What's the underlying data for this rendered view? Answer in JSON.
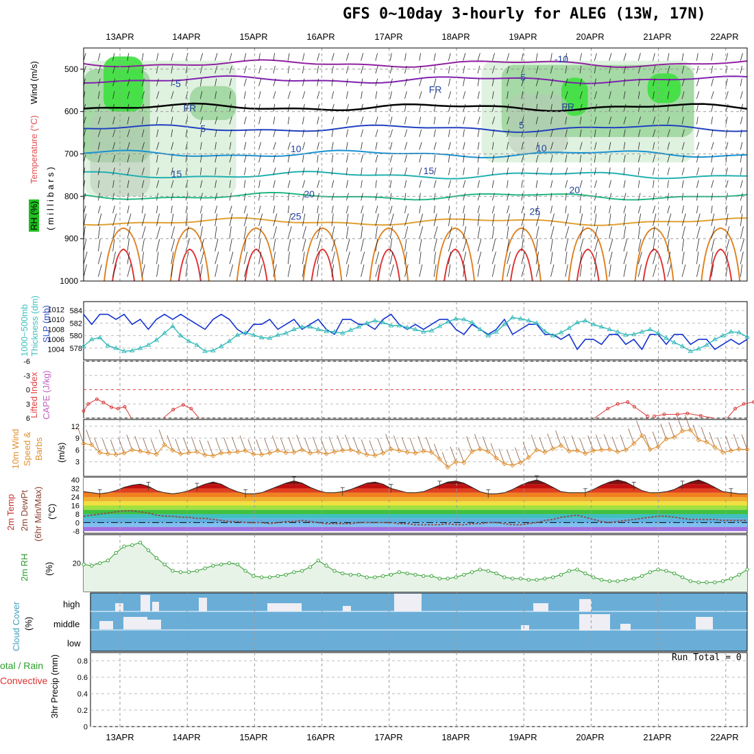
{
  "title": "GFS 0~10day 3-hourly for ALEG (13W, 17N)",
  "dates": [
    "13APR",
    "14APR",
    "15APR",
    "16APR",
    "17APR",
    "18APR",
    "19APR",
    "20APR",
    "21APR",
    "22APR"
  ],
  "labels": {
    "rh": "RH (%)",
    "temperature": "Temperature (°C)",
    "wind": "Wind (m/s)",
    "pressure_axis": "( m i l l i b a r s )",
    "thickness": "1000~500mb Thickness (dm)",
    "slp": "SLP (mb)",
    "lifted_index": "Lifted Index",
    "cape": "CAPE (J/kg)",
    "wind10": "10m Wind Speed & Barbs",
    "ms": "(m/s)",
    "temp2m": "2m Temp",
    "dewpt2m": "2m DewPt",
    "minmax": "(6hr Min/Max)",
    "celsius": "(°C)",
    "rh2m": "2m RH",
    "percent": "(%)",
    "cloud": "Cloud Cover",
    "cloud_pct": "(%)",
    "cloud_high": "high",
    "cloud_middle": "middle",
    "cloud_low": "low",
    "precip_total": "otal / Rain",
    "precip_conv": "Convective",
    "precip_axis": "3hr Precip (mm)",
    "run_total": "Run Total = 0"
  },
  "colors": {
    "rh": "#1fbf1f",
    "temperature": "#e05050",
    "wind": "#000000",
    "thickness": "#40c0c0",
    "slp": "#3050d0",
    "lifted": "#e04040",
    "cape": "#c060c0",
    "wind10_label": "#e09030",
    "rh2m": "#2a9a2a",
    "cloud": "#40a0c0",
    "precip_total": "#2aa02a",
    "precip_conv": "#e03030"
  },
  "chart_data": [
    {
      "type": "line",
      "panel": "upper-air",
      "y_ticks": [
        500,
        600,
        700,
        800,
        900,
        1000
      ],
      "ylim": [
        1000,
        450
      ],
      "isotherms": [
        {
          "name": "-10",
          "color": "#9020a0",
          "base": 487
        },
        {
          "name": "-5",
          "color": "#8020b0",
          "base": 525
        },
        {
          "name": "FR",
          "color": "#000000",
          "base": 590
        },
        {
          "name": "5",
          "color": "#2040c0",
          "base": 640
        },
        {
          "name": "10",
          "color": "#1890d0",
          "base": 700
        },
        {
          "name": "15",
          "color": "#20b0b0",
          "base": 750
        },
        {
          "name": "20",
          "color": "#20b880",
          "base": 800
        },
        {
          "name": "25",
          "color": "#e0a030",
          "base": 860
        }
      ],
      "isotherm_labels": [
        {
          "text": "-10",
          "x": 7.2,
          "p": 484
        },
        {
          "text": "-5",
          "x": 6.6,
          "p": 527
        },
        {
          "text": "-5",
          "x": 1.4,
          "p": 542
        },
        {
          "text": "FR",
          "x": 1.6,
          "p": 600
        },
        {
          "text": "FR",
          "x": 5.3,
          "p": 556
        },
        {
          "text": "FR",
          "x": 7.3,
          "p": 596
        },
        {
          "text": "5",
          "x": 1.8,
          "p": 648
        },
        {
          "text": "5",
          "x": 6.6,
          "p": 640
        },
        {
          "text": "10",
          "x": 3.2,
          "p": 696
        },
        {
          "text": "10",
          "x": 6.9,
          "p": 694
        },
        {
          "text": "15",
          "x": 1.4,
          "p": 755
        },
        {
          "text": "15",
          "x": 5.2,
          "p": 748
        },
        {
          "text": "20",
          "x": 3.4,
          "p": 803
        },
        {
          "text": "20",
          "x": 7.4,
          "p": 793
        },
        {
          "text": "25",
          "x": 3.2,
          "p": 855
        },
        {
          "text": "25",
          "x": 6.8,
          "p": 844
        }
      ],
      "rh_moist_zones": [
        {
          "x0": 0.0,
          "x1": 2.3,
          "p0": 480,
          "p1": 800,
          "level": 1
        },
        {
          "x0": 0.0,
          "x1": 1.0,
          "p0": 500,
          "p1": 720,
          "level": 2
        },
        {
          "x0": 0.3,
          "x1": 0.9,
          "p0": 470,
          "p1": 600,
          "level": 3
        },
        {
          "x0": 1.6,
          "x1": 2.3,
          "p0": 540,
          "p1": 620,
          "level": 2
        },
        {
          "x0": 6.0,
          "x1": 9.2,
          "p0": 480,
          "p1": 720,
          "level": 1
        },
        {
          "x0": 6.3,
          "x1": 9.2,
          "p0": 490,
          "p1": 660,
          "level": 2
        },
        {
          "x0": 7.2,
          "x1": 7.6,
          "p0": 520,
          "p1": 610,
          "level": 3
        },
        {
          "x0": 8.5,
          "x1": 9.0,
          "p0": 510,
          "p1": 580,
          "level": 3
        }
      ]
    },
    {
      "type": "line",
      "panel": "thickness-slp",
      "left_ticks": [
        584,
        582,
        580,
        578
      ],
      "right_ticks": [
        1012,
        1010,
        1008,
        1006,
        1004
      ],
      "series": [
        {
          "name": "SLP (mb)",
          "color": "#1030d0",
          "values": [
            1011,
            1009,
            1011,
            1011,
            1010,
            1011,
            1009,
            1010,
            1008,
            1010,
            1011,
            1010,
            1011,
            1010,
            1009,
            1008,
            1010,
            1011,
            1010,
            1008,
            1007,
            1009,
            1009,
            1010,
            1008,
            1009,
            1010,
            1008,
            1009,
            1010,
            1008,
            1007,
            1010,
            1010,
            1009,
            1009,
            1008,
            1010,
            1011,
            1009,
            1008,
            1009,
            1008,
            1009,
            1010,
            1010,
            1008,
            1007,
            1009,
            1008,
            1007,
            1008,
            1010,
            1007,
            1008,
            1009,
            1009,
            1007,
            1007,
            1006,
            1007,
            1004,
            1006,
            1006,
            1005,
            1007,
            1007,
            1005,
            1006,
            1004,
            1007,
            1007,
            1005,
            1007,
            1007,
            1005,
            1006,
            1006,
            1004,
            1005,
            1006,
            1005,
            1006
          ]
        },
        {
          "name": "1000~500mb Thickness (dm)",
          "color": "#30b8b8",
          "values": [
            578.3,
            579.4,
            579.7,
            578.4,
            578.0,
            577.5,
            577.6,
            578.0,
            578.5,
            579.3,
            580.4,
            581.5,
            580.0,
            579.1,
            578.5,
            577.5,
            577.6,
            578.3,
            579.1,
            580.1,
            580.5,
            580.1,
            579.7,
            579.6,
            580.1,
            580.4,
            581.0,
            581.4,
            581.4,
            581.0,
            580.7,
            580.6,
            580.4,
            580.9,
            581.4,
            582.0,
            582.4,
            582.1,
            581.6,
            581.6,
            581.3,
            581.0,
            580.6,
            580.8,
            581.5,
            582.2,
            582.7,
            582.6,
            582.1,
            581.0,
            580.0,
            580.6,
            581.8,
            582.9,
            582.7,
            582.4,
            582.0,
            580.7,
            580.0,
            580.5,
            581.2,
            582.1,
            582.4,
            581.8,
            581.4,
            581.0,
            580.6,
            580.1,
            580.2,
            580.6,
            581.0,
            580.4,
            579.6,
            578.9,
            578.3,
            577.5,
            577.9,
            578.5,
            579.4,
            580.0,
            580.6,
            580.5,
            579.8
          ]
        }
      ]
    },
    {
      "type": "line",
      "panel": "lifted-cape",
      "y_ticks": [
        -6,
        -3,
        0,
        3,
        6
      ],
      "series": [
        {
          "name": "Lifted Index",
          "color": "#d83838",
          "segments": [
            {
              "x": [
                0.0,
                0.07,
                0.2,
                0.3,
                0.42,
                0.52,
                0.62,
                0.72
              ],
              "values": [
                4.5,
                3.0,
                2.0,
                2.7,
                3.7,
                4.0,
                3.6,
                6.5
              ]
            },
            {
              "x": [
                1.2,
                1.35,
                1.5,
                1.62,
                1.74
              ],
              "values": [
                6.5,
                4.2,
                3.2,
                4.0,
                6.0
              ]
            },
            {
              "x": [
                7.7,
                7.9,
                8.05,
                8.2,
                8.3,
                8.5
              ],
              "values": [
                6.0,
                4.0,
                3.0,
                2.6,
                3.6,
                5.6
              ]
            },
            {
              "x": [
                8.6,
                8.75,
                8.95,
                9.1,
                9.3,
                9.5
              ],
              "values": [
                5.6,
                5.2,
                5.2,
                5.0,
                5.5,
                6.0
              ]
            },
            {
              "x": [
                9.7,
                9.82,
                9.95,
                10.1,
                10.25,
                10.4,
                10.55,
                10.65,
                10.75
              ],
              "values": [
                6.0,
                4.0,
                3.0,
                2.6,
                2.2,
                3.4,
                4.8,
                5.2,
                6.0
              ]
            }
          ]
        }
      ]
    },
    {
      "type": "line",
      "panel": "wind10",
      "y_ticks": [
        3,
        6,
        9,
        12
      ],
      "series": [
        {
          "name": "10m Wind Speed",
          "color": "#e09030",
          "values": [
            7.6,
            7.3,
            5.3,
            5.0,
            4.8,
            5.2,
            6.0,
            5.7,
            5.3,
            4.9,
            7.3,
            5.9,
            5.0,
            5.3,
            5.5,
            4.7,
            4.5,
            5.2,
            5.3,
            5.5,
            5.8,
            4.9,
            4.8,
            5.2,
            5.8,
            5.3,
            5.4,
            6.0,
            5.2,
            5.5,
            5.0,
            5.5,
            5.9,
            6.0,
            5.4,
            4.8,
            4.6,
            5.2,
            6.2,
            5.8,
            5.4,
            5.2,
            5.7,
            5.4,
            3.7,
            1.6,
            3.0,
            2.8,
            5.6,
            6.2,
            5.6,
            3.9,
            2.5,
            2.1,
            2.8,
            4.1,
            6.0,
            5.4,
            6.3,
            7.1,
            5.7,
            5.8,
            5.1,
            5.8,
            6.0,
            6.1,
            5.5,
            6.0,
            7.6,
            9.6,
            6.1,
            6.8,
            8.8,
            9.2,
            10.8,
            11.0,
            8.5,
            8.0,
            6.7,
            5.4,
            5.8,
            6.2,
            6.1
          ]
        }
      ]
    },
    {
      "type": "area",
      "panel": "temp2m",
      "y_ticks": [
        40,
        32,
        24,
        16,
        8,
        0,
        -8
      ],
      "series": [
        {
          "name": "2m Temp",
          "color": "#e06020",
          "values": [
            29,
            28,
            27,
            28,
            30,
            33,
            35,
            36,
            34,
            30,
            28,
            27,
            28,
            30,
            33,
            36,
            38,
            36,
            32,
            29,
            27,
            27,
            28,
            31,
            34,
            37,
            39,
            37,
            33,
            30,
            28,
            28,
            29,
            31,
            34,
            37,
            38,
            36,
            32,
            30,
            28,
            28,
            29,
            32,
            35,
            38,
            39,
            37,
            33,
            29,
            27,
            27,
            28,
            31,
            35,
            38,
            40,
            37,
            33,
            29,
            28,
            28,
            28,
            31,
            35,
            38,
            40,
            38,
            34,
            30,
            28,
            28,
            29,
            31,
            35,
            38,
            40,
            37,
            33,
            29,
            28,
            27,
            27
          ]
        },
        {
          "name": "2m DewPt",
          "color": "#8a4030",
          "values": [
            6,
            7,
            8,
            9,
            10,
            11,
            11,
            10,
            9,
            7,
            6,
            6,
            5,
            5,
            4,
            4,
            3,
            2,
            1,
            1,
            0,
            0,
            0,
            -1,
            0,
            1,
            1,
            2,
            1,
            0,
            -1,
            -1,
            -1,
            -1,
            0,
            0,
            0,
            0,
            0,
            -1,
            -1,
            -2,
            -2,
            -2,
            -2,
            -1,
            -2,
            -2,
            -1,
            -1,
            0,
            0,
            -1,
            -2,
            -2,
            -1,
            0,
            2,
            3,
            5,
            6,
            7,
            5,
            3,
            1,
            0,
            1,
            2,
            3,
            4,
            5,
            6,
            6,
            5,
            4,
            3,
            3,
            3,
            3,
            2,
            2,
            2,
            2
          ]
        }
      ]
    },
    {
      "type": "area",
      "panel": "rh2m",
      "y_ticks": [
        20
      ],
      "series": [
        {
          "name": "2m RH",
          "color": "#2a9a2a",
          "values": [
            19,
            18,
            20,
            22,
            28,
            33,
            34,
            36,
            30,
            24,
            19,
            14,
            13,
            13,
            14,
            16,
            18,
            19,
            20,
            19,
            14,
            10,
            9,
            9,
            10,
            11,
            13,
            14,
            17,
            22,
            18,
            14,
            12,
            11,
            11,
            9,
            9,
            10,
            11,
            13,
            12,
            11,
            10,
            10,
            8,
            8,
            9,
            11,
            13,
            15,
            14,
            12,
            9,
            8,
            8,
            7,
            7,
            8,
            9,
            11,
            14,
            15,
            12,
            9,
            7,
            6,
            6,
            7,
            8,
            10,
            13,
            15,
            14,
            12,
            9,
            6,
            5,
            5,
            5,
            6,
            8,
            11,
            15
          ]
        }
      ]
    },
    {
      "type": "bar",
      "panel": "cloud",
      "categories": [
        "high",
        "middle",
        "low"
      ],
      "y_ticks": [
        "high",
        "middle",
        "low"
      ]
    },
    {
      "type": "bar",
      "panel": "precip",
      "y_ticks": [
        0,
        0.2,
        0.4,
        0.6,
        0.8
      ],
      "ylim": [
        0,
        0.9
      ],
      "series": [
        {
          "name": "Total / Rain",
          "values": []
        },
        {
          "name": "Convective",
          "values": []
        }
      ]
    }
  ]
}
